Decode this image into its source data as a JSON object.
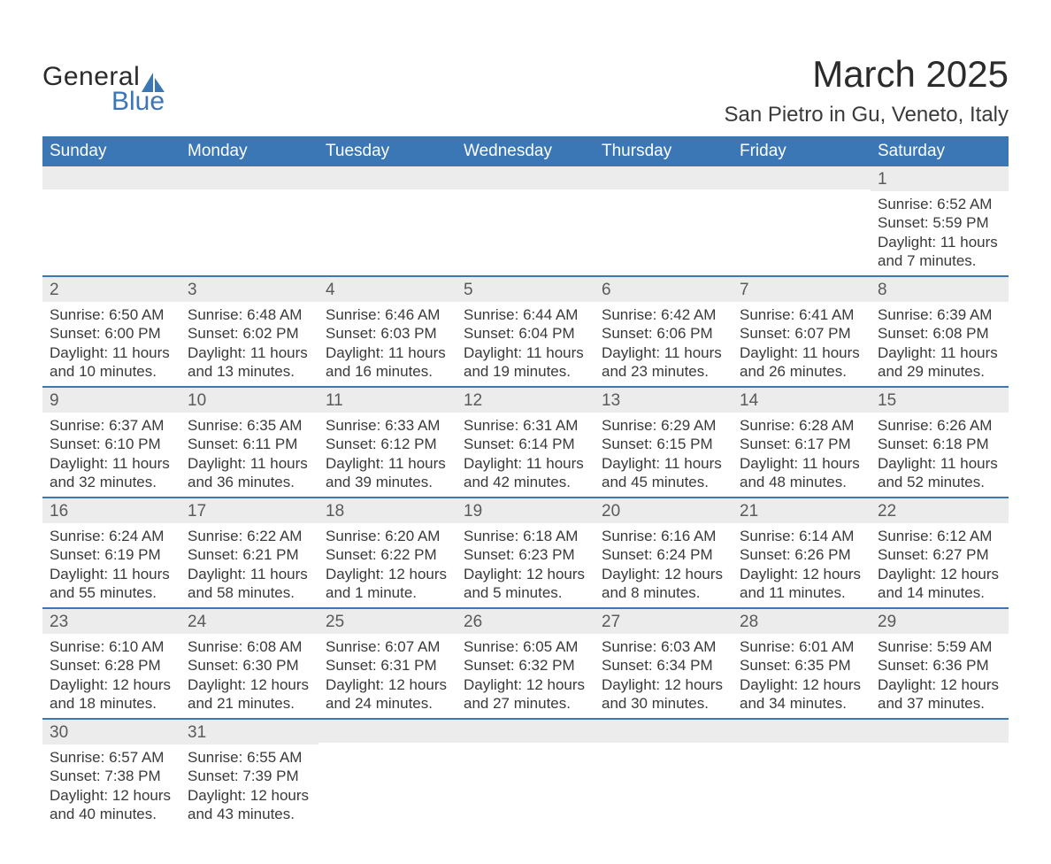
{
  "logo": {
    "text_general": "General",
    "text_blue": "Blue",
    "sail_color": "#3b76b5"
  },
  "title": {
    "month": "March 2025",
    "location": "San Pietro in Gu, Veneto, Italy"
  },
  "colors": {
    "header_bg": "#3b76b5",
    "header_text": "#ffffff",
    "daynum_bg": "#ececec",
    "row_border": "#3b76b5",
    "body_text": "#3a3a3a"
  },
  "day_headers": [
    "Sunday",
    "Monday",
    "Tuesday",
    "Wednesday",
    "Thursday",
    "Friday",
    "Saturday"
  ],
  "weeks": [
    [
      null,
      null,
      null,
      null,
      null,
      null,
      {
        "n": "1",
        "sunrise": "Sunrise: 6:52 AM",
        "sunset": "Sunset: 5:59 PM",
        "dl1": "Daylight: 11 hours",
        "dl2": "and 7 minutes."
      }
    ],
    [
      {
        "n": "2",
        "sunrise": "Sunrise: 6:50 AM",
        "sunset": "Sunset: 6:00 PM",
        "dl1": "Daylight: 11 hours",
        "dl2": "and 10 minutes."
      },
      {
        "n": "3",
        "sunrise": "Sunrise: 6:48 AM",
        "sunset": "Sunset: 6:02 PM",
        "dl1": "Daylight: 11 hours",
        "dl2": "and 13 minutes."
      },
      {
        "n": "4",
        "sunrise": "Sunrise: 6:46 AM",
        "sunset": "Sunset: 6:03 PM",
        "dl1": "Daylight: 11 hours",
        "dl2": "and 16 minutes."
      },
      {
        "n": "5",
        "sunrise": "Sunrise: 6:44 AM",
        "sunset": "Sunset: 6:04 PM",
        "dl1": "Daylight: 11 hours",
        "dl2": "and 19 minutes."
      },
      {
        "n": "6",
        "sunrise": "Sunrise: 6:42 AM",
        "sunset": "Sunset: 6:06 PM",
        "dl1": "Daylight: 11 hours",
        "dl2": "and 23 minutes."
      },
      {
        "n": "7",
        "sunrise": "Sunrise: 6:41 AM",
        "sunset": "Sunset: 6:07 PM",
        "dl1": "Daylight: 11 hours",
        "dl2": "and 26 minutes."
      },
      {
        "n": "8",
        "sunrise": "Sunrise: 6:39 AM",
        "sunset": "Sunset: 6:08 PM",
        "dl1": "Daylight: 11 hours",
        "dl2": "and 29 minutes."
      }
    ],
    [
      {
        "n": "9",
        "sunrise": "Sunrise: 6:37 AM",
        "sunset": "Sunset: 6:10 PM",
        "dl1": "Daylight: 11 hours",
        "dl2": "and 32 minutes."
      },
      {
        "n": "10",
        "sunrise": "Sunrise: 6:35 AM",
        "sunset": "Sunset: 6:11 PM",
        "dl1": "Daylight: 11 hours",
        "dl2": "and 36 minutes."
      },
      {
        "n": "11",
        "sunrise": "Sunrise: 6:33 AM",
        "sunset": "Sunset: 6:12 PM",
        "dl1": "Daylight: 11 hours",
        "dl2": "and 39 minutes."
      },
      {
        "n": "12",
        "sunrise": "Sunrise: 6:31 AM",
        "sunset": "Sunset: 6:14 PM",
        "dl1": "Daylight: 11 hours",
        "dl2": "and 42 minutes."
      },
      {
        "n": "13",
        "sunrise": "Sunrise: 6:29 AM",
        "sunset": "Sunset: 6:15 PM",
        "dl1": "Daylight: 11 hours",
        "dl2": "and 45 minutes."
      },
      {
        "n": "14",
        "sunrise": "Sunrise: 6:28 AM",
        "sunset": "Sunset: 6:17 PM",
        "dl1": "Daylight: 11 hours",
        "dl2": "and 48 minutes."
      },
      {
        "n": "15",
        "sunrise": "Sunrise: 6:26 AM",
        "sunset": "Sunset: 6:18 PM",
        "dl1": "Daylight: 11 hours",
        "dl2": "and 52 minutes."
      }
    ],
    [
      {
        "n": "16",
        "sunrise": "Sunrise: 6:24 AM",
        "sunset": "Sunset: 6:19 PM",
        "dl1": "Daylight: 11 hours",
        "dl2": "and 55 minutes."
      },
      {
        "n": "17",
        "sunrise": "Sunrise: 6:22 AM",
        "sunset": "Sunset: 6:21 PM",
        "dl1": "Daylight: 11 hours",
        "dl2": "and 58 minutes."
      },
      {
        "n": "18",
        "sunrise": "Sunrise: 6:20 AM",
        "sunset": "Sunset: 6:22 PM",
        "dl1": "Daylight: 12 hours",
        "dl2": "and 1 minute."
      },
      {
        "n": "19",
        "sunrise": "Sunrise: 6:18 AM",
        "sunset": "Sunset: 6:23 PM",
        "dl1": "Daylight: 12 hours",
        "dl2": "and 5 minutes."
      },
      {
        "n": "20",
        "sunrise": "Sunrise: 6:16 AM",
        "sunset": "Sunset: 6:24 PM",
        "dl1": "Daylight: 12 hours",
        "dl2": "and 8 minutes."
      },
      {
        "n": "21",
        "sunrise": "Sunrise: 6:14 AM",
        "sunset": "Sunset: 6:26 PM",
        "dl1": "Daylight: 12 hours",
        "dl2": "and 11 minutes."
      },
      {
        "n": "22",
        "sunrise": "Sunrise: 6:12 AM",
        "sunset": "Sunset: 6:27 PM",
        "dl1": "Daylight: 12 hours",
        "dl2": "and 14 minutes."
      }
    ],
    [
      {
        "n": "23",
        "sunrise": "Sunrise: 6:10 AM",
        "sunset": "Sunset: 6:28 PM",
        "dl1": "Daylight: 12 hours",
        "dl2": "and 18 minutes."
      },
      {
        "n": "24",
        "sunrise": "Sunrise: 6:08 AM",
        "sunset": "Sunset: 6:30 PM",
        "dl1": "Daylight: 12 hours",
        "dl2": "and 21 minutes."
      },
      {
        "n": "25",
        "sunrise": "Sunrise: 6:07 AM",
        "sunset": "Sunset: 6:31 PM",
        "dl1": "Daylight: 12 hours",
        "dl2": "and 24 minutes."
      },
      {
        "n": "26",
        "sunrise": "Sunrise: 6:05 AM",
        "sunset": "Sunset: 6:32 PM",
        "dl1": "Daylight: 12 hours",
        "dl2": "and 27 minutes."
      },
      {
        "n": "27",
        "sunrise": "Sunrise: 6:03 AM",
        "sunset": "Sunset: 6:34 PM",
        "dl1": "Daylight: 12 hours",
        "dl2": "and 30 minutes."
      },
      {
        "n": "28",
        "sunrise": "Sunrise: 6:01 AM",
        "sunset": "Sunset: 6:35 PM",
        "dl1": "Daylight: 12 hours",
        "dl2": "and 34 minutes."
      },
      {
        "n": "29",
        "sunrise": "Sunrise: 5:59 AM",
        "sunset": "Sunset: 6:36 PM",
        "dl1": "Daylight: 12 hours",
        "dl2": "and 37 minutes."
      }
    ],
    [
      {
        "n": "30",
        "sunrise": "Sunrise: 6:57 AM",
        "sunset": "Sunset: 7:38 PM",
        "dl1": "Daylight: 12 hours",
        "dl2": "and 40 minutes."
      },
      {
        "n": "31",
        "sunrise": "Sunrise: 6:55 AM",
        "sunset": "Sunset: 7:39 PM",
        "dl1": "Daylight: 12 hours",
        "dl2": "and 43 minutes."
      },
      null,
      null,
      null,
      null,
      null
    ]
  ]
}
